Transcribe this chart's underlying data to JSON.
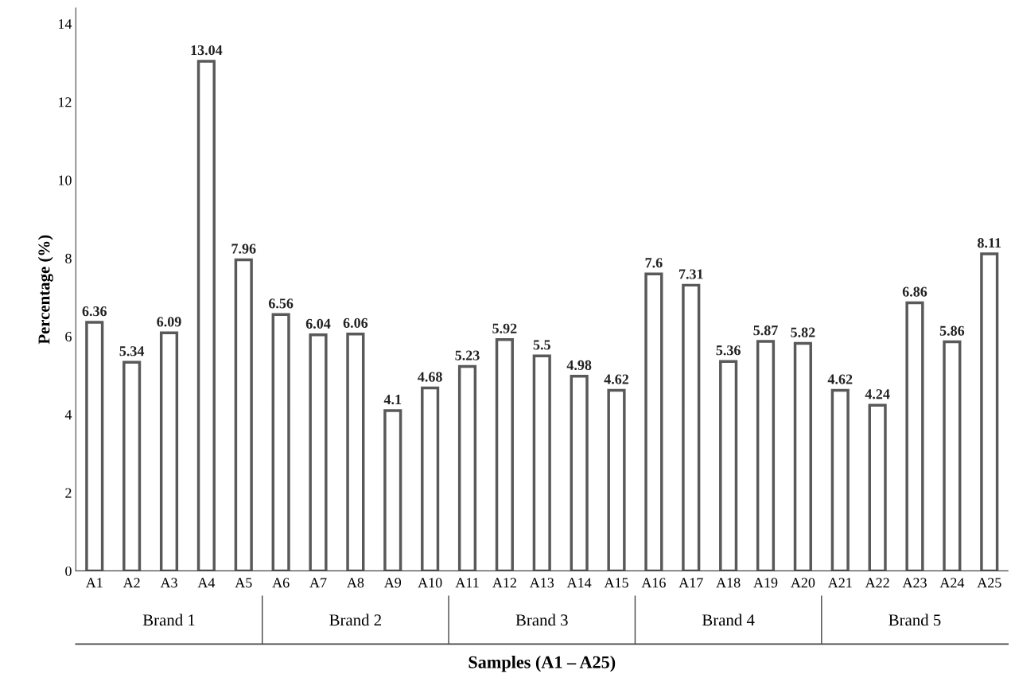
{
  "chart_data": {
    "type": "bar",
    "categories": [
      "A1",
      "A2",
      "A3",
      "A4",
      "A5",
      "A6",
      "A7",
      "A8",
      "A9",
      "A10",
      "A11",
      "A12",
      "A13",
      "A14",
      "A15",
      "A16",
      "A17",
      "A18",
      "A19",
      "A20",
      "A21",
      "A22",
      "A23",
      "A24",
      "A25"
    ],
    "values": [
      6.36,
      5.34,
      6.09,
      13.04,
      7.96,
      6.56,
      6.04,
      6.06,
      4.1,
      4.68,
      5.23,
      5.92,
      5.5,
      4.98,
      4.62,
      7.6,
      7.31,
      5.36,
      5.87,
      5.82,
      4.62,
      4.24,
      6.86,
      5.86,
      8.11
    ],
    "color": "#595959",
    "data_labels": true,
    "xlabel": "Samples (A1 – A25)",
    "ylabel": "Percentage (%)",
    "annotations": [
      "Brand 1",
      "Brand 2",
      "Brand 3",
      "Brand 4",
      "Brand 5"
    ],
    "ylim": [
      0,
      14.4
    ],
    "yticks": [
      0,
      2,
      4,
      6,
      8,
      10,
      12,
      14
    ],
    "grid": false,
    "legend": false
  }
}
